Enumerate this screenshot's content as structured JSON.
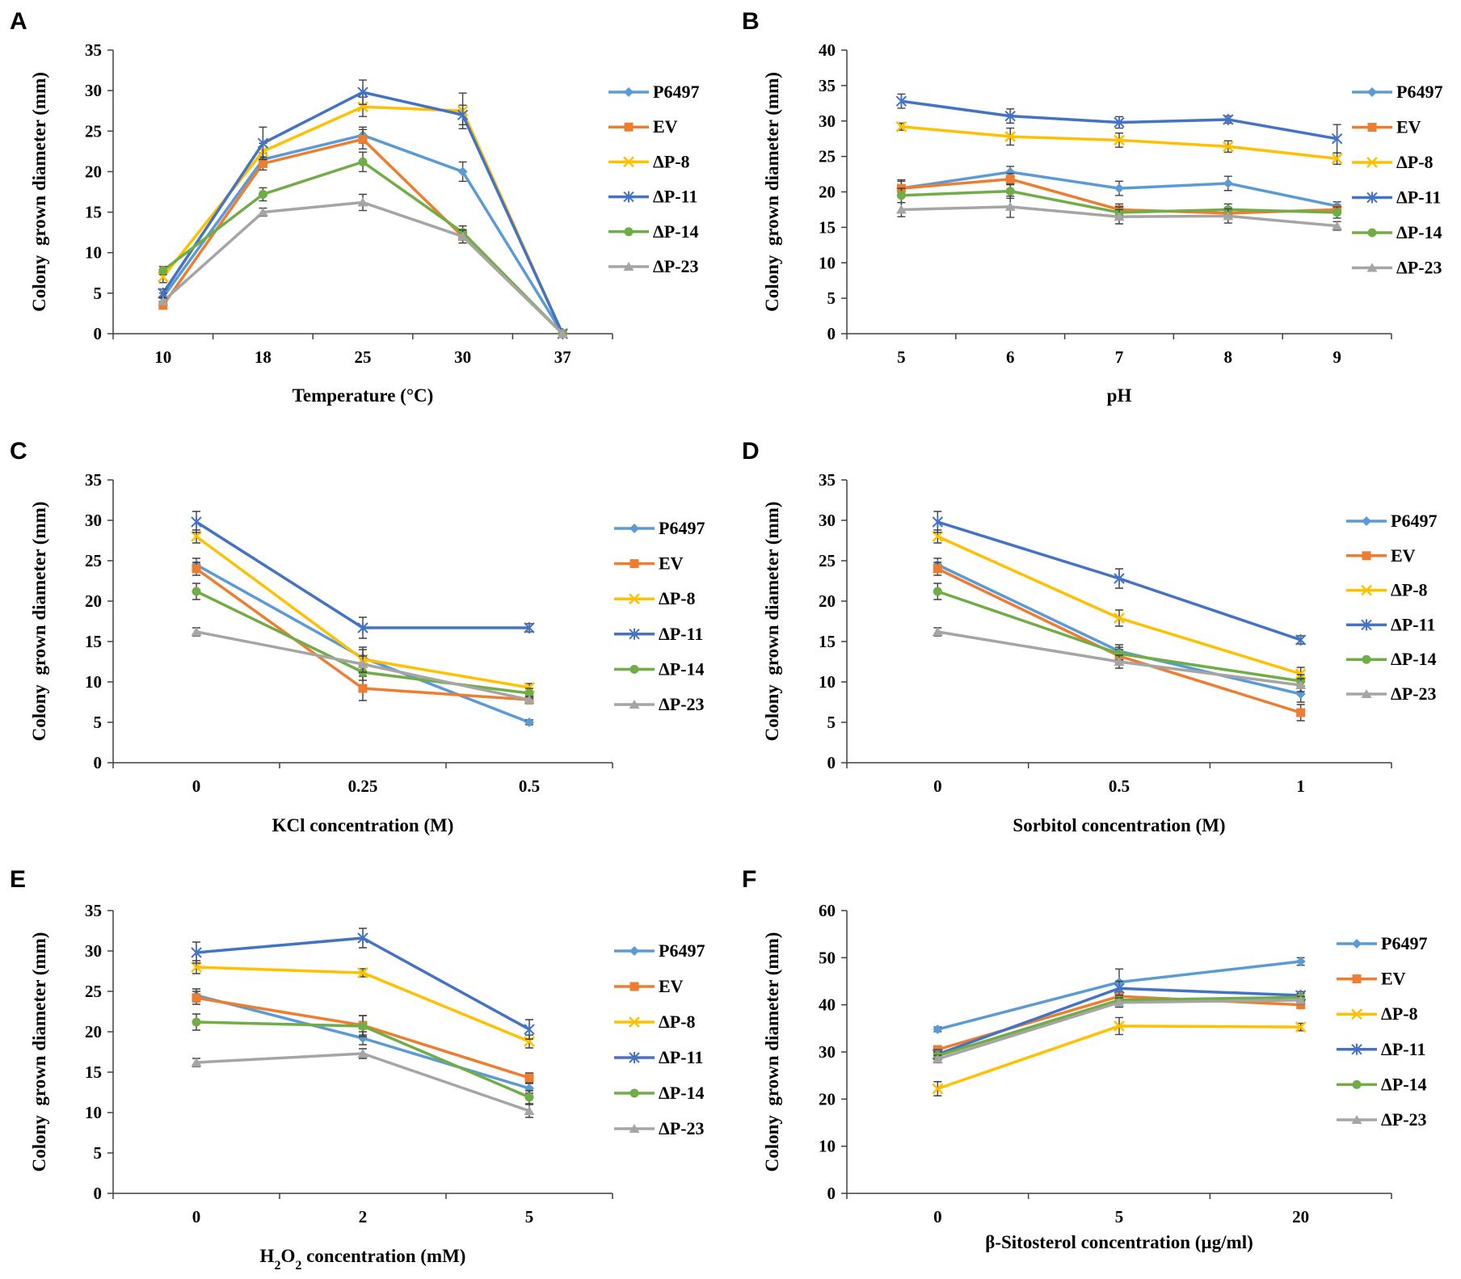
{
  "series_styles": [
    {
      "name": "P6497",
      "color": "#5b9bd5",
      "marker": "diamond"
    },
    {
      "name": "EV",
      "color": "#ed7d31",
      "marker": "square"
    },
    {
      "name": "ΔP-8",
      "color": "#ffc000",
      "marker": "x"
    },
    {
      "name": "ΔP-11",
      "color": "#4472c4",
      "marker": "star"
    },
    {
      "name": "ΔP-14",
      "color": "#70ad47",
      "marker": "circle"
    },
    {
      "name": "ΔP-23",
      "color": "#a5a5a5",
      "marker": "triangle"
    }
  ],
  "chart_data": [
    {
      "panel": "A",
      "type": "line",
      "categories": [
        "10",
        "18",
        "25",
        "30",
        "37"
      ],
      "xlabel": "Temperature (°C)",
      "ylabel": "Colony  grown diameter (mm)",
      "ylim": [
        0,
        35
      ],
      "yticks": [
        0,
        5,
        10,
        15,
        20,
        25,
        30,
        35
      ],
      "grid": false,
      "legend": "right",
      "series": [
        {
          "name": "P6497",
          "values": [
            4.5,
            21.5,
            24.5,
            20,
            0
          ],
          "errors": [
            0.5,
            0.8,
            1,
            1.2,
            0
          ]
        },
        {
          "name": "EV",
          "values": [
            3.5,
            21,
            24,
            12,
            0
          ],
          "errors": [
            0.4,
            0.8,
            1.2,
            0.8,
            0
          ]
        },
        {
          "name": "ΔP-8",
          "values": [
            7,
            22.5,
            28,
            27.5,
            0
          ],
          "errors": [
            0.7,
            1,
            1.2,
            2.2,
            0
          ]
        },
        {
          "name": "ΔP-11",
          "values": [
            5,
            23.5,
            29.8,
            27,
            0
          ],
          "errors": [
            0.5,
            2,
            1.5,
            1.2,
            0
          ]
        },
        {
          "name": "ΔP-14",
          "values": [
            7.8,
            17.2,
            21.2,
            12.5,
            0
          ],
          "errors": [
            0.5,
            0.8,
            1.2,
            0.8,
            0
          ]
        },
        {
          "name": "ΔP-23",
          "values": [
            4,
            15,
            16.2,
            12,
            0
          ],
          "errors": [
            0.4,
            0.5,
            1,
            0.8,
            0
          ]
        }
      ]
    },
    {
      "panel": "B",
      "type": "line",
      "categories": [
        "5",
        "6",
        "7",
        "8",
        "9"
      ],
      "xlabel": "pH",
      "ylabel": "Colony  grown diameter (mm)",
      "ylim": [
        0,
        40
      ],
      "yticks": [
        0,
        5,
        10,
        15,
        20,
        25,
        30,
        35,
        40
      ],
      "grid": false,
      "legend": "right",
      "series": [
        {
          "name": "P6497",
          "values": [
            20.5,
            22.8,
            20.5,
            21.2,
            18
          ],
          "errors": [
            1.2,
            0.8,
            1,
            1,
            0.6
          ]
        },
        {
          "name": "EV",
          "values": [
            20.5,
            21.8,
            17.5,
            17,
            17.5
          ],
          "errors": [
            1,
            0.8,
            0.8,
            0.8,
            0.6
          ]
        },
        {
          "name": "ΔP-8",
          "values": [
            29.2,
            27.8,
            27.3,
            26.4,
            24.7
          ],
          "errors": [
            0.5,
            1.2,
            1,
            0.8,
            0.8
          ]
        },
        {
          "name": "ΔP-11",
          "values": [
            32.8,
            30.7,
            29.8,
            30.2,
            27.5
          ],
          "errors": [
            1,
            1,
            0.8,
            0.5,
            2
          ]
        },
        {
          "name": "ΔP-14",
          "values": [
            19.5,
            20.1,
            17.1,
            17.5,
            17.1
          ],
          "errors": [
            1,
            1,
            0.8,
            0.8,
            0.8
          ]
        },
        {
          "name": "ΔP-23",
          "values": [
            17.5,
            17.9,
            16.5,
            16.6,
            15.2
          ],
          "errors": [
            1,
            1.5,
            1,
            1,
            0.6
          ]
        }
      ]
    },
    {
      "panel": "C",
      "type": "line",
      "categories": [
        "0",
        "0.25",
        "0.5"
      ],
      "xlabel": "KCl concentration (M)",
      "ylabel": "Colony  grown diameter (mm)",
      "ylim": [
        0,
        35
      ],
      "yticks": [
        0,
        5,
        10,
        15,
        20,
        25,
        30,
        35
      ],
      "grid": false,
      "legend": "right",
      "series": [
        {
          "name": "P6497",
          "values": [
            24.5,
            13,
            5
          ],
          "errors": [
            0.8,
            1,
            0.3
          ]
        },
        {
          "name": "EV",
          "values": [
            24,
            9.2,
            7.8
          ],
          "errors": [
            0.8,
            1.5,
            0.5
          ]
        },
        {
          "name": "ΔP-8",
          "values": [
            28,
            12.8,
            9.3
          ],
          "errors": [
            0.8,
            1.5,
            0.5
          ]
        },
        {
          "name": "ΔP-11",
          "values": [
            29.8,
            16.7,
            16.7
          ],
          "errors": [
            1.3,
            1.3,
            0.5
          ]
        },
        {
          "name": "ΔP-14",
          "values": [
            21.2,
            11.2,
            8.6
          ],
          "errors": [
            1,
            1,
            0.6
          ]
        },
        {
          "name": "ΔP-23",
          "values": [
            16.2,
            12.2,
            7.8
          ],
          "errors": [
            0.5,
            1,
            0.4
          ]
        }
      ]
    },
    {
      "panel": "D",
      "type": "line",
      "categories": [
        "0",
        "0.5",
        "1"
      ],
      "xlabel": "Sorbitol concentration (M)",
      "ylabel": "Colony  grown diameter (mm)",
      "ylim": [
        0,
        35
      ],
      "yticks": [
        0,
        5,
        10,
        15,
        20,
        25,
        30,
        35
      ],
      "grid": false,
      "legend": "right",
      "series": [
        {
          "name": "P6497",
          "values": [
            24.5,
            13.8,
            8.5
          ],
          "errors": [
            0.8,
            0.8,
            1
          ]
        },
        {
          "name": "EV",
          "values": [
            24,
            13.2,
            6.2
          ],
          "errors": [
            0.8,
            0.8,
            1
          ]
        },
        {
          "name": "ΔP-8",
          "values": [
            28,
            17.9,
            11
          ],
          "errors": [
            0.8,
            1,
            0.8
          ]
        },
        {
          "name": "ΔP-11",
          "values": [
            29.8,
            22.8,
            15.2
          ],
          "errors": [
            1.3,
            1.2,
            0.5
          ]
        },
        {
          "name": "ΔP-14",
          "values": [
            21.2,
            13.5,
            10.1
          ],
          "errors": [
            1,
            0.8,
            0.8
          ]
        },
        {
          "name": "ΔP-23",
          "values": [
            16.2,
            12.5,
            9.6
          ],
          "errors": [
            0.5,
            0.8,
            0.8
          ]
        }
      ]
    },
    {
      "panel": "E",
      "type": "line",
      "categories": [
        "0",
        "2",
        "5"
      ],
      "xlabel": "H2O2 concentration (mM)",
      "ylabel": "Colony  grown diameter (mm)",
      "ylim": [
        0,
        35
      ],
      "yticks": [
        0,
        5,
        10,
        15,
        20,
        25,
        30,
        35
      ],
      "grid": false,
      "legend": "right",
      "series": [
        {
          "name": "P6497",
          "values": [
            24.5,
            19.2,
            13
          ],
          "errors": [
            0.8,
            0.8,
            0.6
          ]
        },
        {
          "name": "EV",
          "values": [
            24.2,
            20.8,
            14.3
          ],
          "errors": [
            0.8,
            1.2,
            0.6
          ]
        },
        {
          "name": "ΔP-8",
          "values": [
            28,
            27.3,
            18.8
          ],
          "errors": [
            0.8,
            0.5,
            0.8
          ]
        },
        {
          "name": "ΔP-11",
          "values": [
            29.8,
            31.6,
            20.3
          ],
          "errors": [
            1.3,
            1.2,
            1.2
          ]
        },
        {
          "name": "ΔP-14",
          "values": [
            21.2,
            20.7,
            11.9
          ],
          "errors": [
            1,
            1.3,
            0.8
          ]
        },
        {
          "name": "ΔP-23",
          "values": [
            16.2,
            17.3,
            10.2
          ],
          "errors": [
            0.5,
            0.6,
            0.8
          ]
        }
      ]
    },
    {
      "panel": "F",
      "type": "line",
      "categories": [
        "0",
        "5",
        "20"
      ],
      "xlabel": "β-Sitosterol concentration (µg/ml)",
      "ylabel": "Colony  grown diameter (mm)",
      "ylim": [
        0,
        60
      ],
      "yticks": [
        0,
        10,
        20,
        30,
        40,
        50,
        60
      ],
      "grid": false,
      "legend": "right",
      "series": [
        {
          "name": "P6497",
          "values": [
            34.8,
            44.8,
            49.2
          ],
          "errors": [
            0.5,
            2.8,
            0.8
          ]
        },
        {
          "name": "EV",
          "values": [
            30.5,
            41.8,
            40
          ],
          "errors": [
            0.8,
            1,
            0.8
          ]
        },
        {
          "name": "ΔP-8",
          "values": [
            22.2,
            35.5,
            35.3
          ],
          "errors": [
            1.5,
            1.8,
            0.8
          ]
        },
        {
          "name": "ΔP-11",
          "values": [
            29.5,
            43.5,
            42
          ],
          "errors": [
            1,
            1.5,
            0.8
          ]
        },
        {
          "name": "ΔP-14",
          "values": [
            29.2,
            41,
            41.6
          ],
          "errors": [
            0.8,
            1,
            0.8
          ]
        },
        {
          "name": "ΔP-23",
          "values": [
            28.5,
            40.5,
            41
          ],
          "errors": [
            0.8,
            1,
            0.8
          ]
        }
      ]
    }
  ]
}
